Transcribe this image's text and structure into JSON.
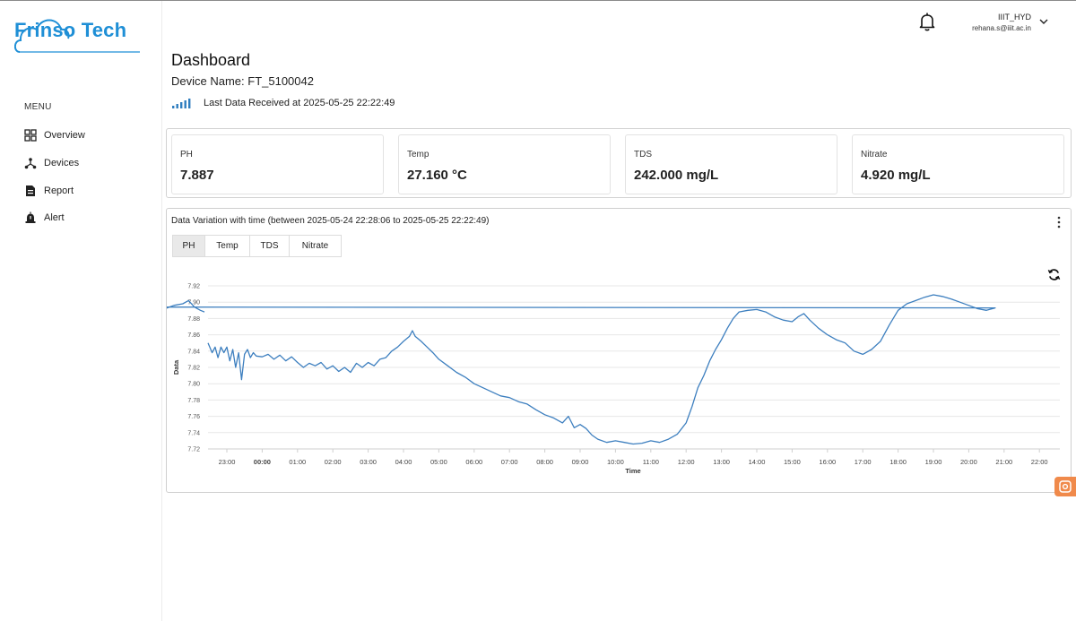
{
  "brand": {
    "name": "Frinso Tech",
    "color": "#1f8fd6"
  },
  "sidebar": {
    "menu_title": "MENU",
    "items": [
      {
        "label": "Overview",
        "icon": "grid-icon"
      },
      {
        "label": "Devices",
        "icon": "network-icon"
      },
      {
        "label": "Report",
        "icon": "document-icon"
      },
      {
        "label": "Alert",
        "icon": "alarm-icon"
      }
    ]
  },
  "topbar": {
    "user_name": "IIIT_HYD",
    "user_email": "rehana.s@iiit.ac.in",
    "icons": [
      "bell-icon",
      "chevron-down-icon"
    ]
  },
  "header": {
    "title": "Dashboard",
    "device_name": "Device Name: FT_5100042",
    "last_data": "Last Data Received at 2025-05-25 22:22:49"
  },
  "stats": [
    {
      "label": "PH",
      "value": "7.887"
    },
    {
      "label": "Temp",
      "value": "27.160 °C"
    },
    {
      "label": "TDS",
      "value": "242.000 mg/L"
    },
    {
      "label": "Nitrate",
      "value": "4.920 mg/L"
    }
  ],
  "chart_panel": {
    "title": "Data Variation with time (between 2025-05-24 22:28:06 to 2025-05-25 22:22:49)",
    "tabs": [
      "PH",
      "Temp",
      "TDS",
      "Nitrate"
    ],
    "active_tab": "PH"
  },
  "chart_data": {
    "type": "line",
    "xlabel": "Time",
    "ylabel": "Data",
    "ylim": [
      7.72,
      7.92
    ],
    "yticks": [
      "7.92",
      "7.90",
      "7.88",
      "7.86",
      "7.84",
      "7.82",
      "7.80",
      "7.78",
      "7.76",
      "7.74",
      "7.72"
    ],
    "xticks": [
      "23:00",
      "00:00",
      "01:00",
      "02:00",
      "03:00",
      "04:00",
      "05:00",
      "06:00",
      "07:00",
      "08:00",
      "09:00",
      "10:00",
      "11:00",
      "12:00",
      "13:00",
      "14:00",
      "15:00",
      "16:00",
      "17:00",
      "18:00",
      "19:00",
      "20:00",
      "21:00",
      "22:00"
    ],
    "bold_xtick": "00:00",
    "line_color": "#3d7fbf",
    "grid": true,
    "points": [
      [
        "22:28",
        7.85
      ],
      [
        "22:35",
        7.838
      ],
      [
        "22:40",
        7.845
      ],
      [
        "22:45",
        7.832
      ],
      [
        "22:50",
        7.845
      ],
      [
        "22:55",
        7.838
      ],
      [
        "23:00",
        7.845
      ],
      [
        "23:05",
        7.828
      ],
      [
        "23:10",
        7.842
      ],
      [
        "23:15",
        7.82
      ],
      [
        "23:20",
        7.838
      ],
      [
        "23:25",
        7.805
      ],
      [
        "23:30",
        7.836
      ],
      [
        "23:35",
        7.842
      ],
      [
        "23:40",
        7.832
      ],
      [
        "23:45",
        7.838
      ],
      [
        "23:50",
        7.834
      ],
      [
        "00:00",
        7.833
      ],
      [
        "00:10",
        7.836
      ],
      [
        "00:20",
        7.83
      ],
      [
        "00:30",
        7.835
      ],
      [
        "00:40",
        7.828
      ],
      [
        "00:50",
        7.833
      ],
      [
        "01:00",
        7.826
      ],
      [
        "01:10",
        7.82
      ],
      [
        "01:20",
        7.825
      ],
      [
        "01:30",
        7.822
      ],
      [
        "01:40",
        7.826
      ],
      [
        "01:50",
        7.818
      ],
      [
        "02:00",
        7.822
      ],
      [
        "02:10",
        7.815
      ],
      [
        "02:20",
        7.82
      ],
      [
        "02:30",
        7.814
      ],
      [
        "02:40",
        7.825
      ],
      [
        "02:50",
        7.82
      ],
      [
        "03:00",
        7.826
      ],
      [
        "03:10",
        7.822
      ],
      [
        "03:20",
        7.83
      ],
      [
        "03:30",
        7.832
      ],
      [
        "03:40",
        7.84
      ],
      [
        "03:50",
        7.845
      ],
      [
        "04:00",
        7.852
      ],
      [
        "04:10",
        7.858
      ],
      [
        "04:15",
        7.865
      ],
      [
        "04:20",
        7.858
      ],
      [
        "04:30",
        7.852
      ],
      [
        "04:40",
        7.845
      ],
      [
        "04:50",
        7.838
      ],
      [
        "05:00",
        7.83
      ],
      [
        "05:15",
        7.822
      ],
      [
        "05:30",
        7.814
      ],
      [
        "05:45",
        7.808
      ],
      [
        "06:00",
        7.8
      ],
      [
        "06:15",
        7.795
      ],
      [
        "06:30",
        7.79
      ],
      [
        "06:45",
        7.785
      ],
      [
        "07:00",
        7.783
      ],
      [
        "07:15",
        7.778
      ],
      [
        "07:30",
        7.775
      ],
      [
        "07:45",
        7.768
      ],
      [
        "08:00",
        7.762
      ],
      [
        "08:15",
        7.758
      ],
      [
        "08:30",
        7.752
      ],
      [
        "08:40",
        7.76
      ],
      [
        "08:50",
        7.746
      ],
      [
        "09:00",
        7.75
      ],
      [
        "09:10",
        7.745
      ],
      [
        "09:20",
        7.737
      ],
      [
        "09:30",
        7.732
      ],
      [
        "09:45",
        7.728
      ],
      [
        "10:00",
        7.73
      ],
      [
        "10:15",
        7.728
      ],
      [
        "10:30",
        7.726
      ],
      [
        "10:45",
        7.727
      ],
      [
        "11:00",
        7.73
      ],
      [
        "11:15",
        7.728
      ],
      [
        "11:30",
        7.732
      ],
      [
        "11:45",
        7.738
      ],
      [
        "12:00",
        7.752
      ],
      [
        "12:10",
        7.772
      ],
      [
        "12:20",
        7.795
      ],
      [
        "12:30",
        7.81
      ],
      [
        "12:40",
        7.828
      ],
      [
        "12:50",
        7.842
      ],
      [
        "13:00",
        7.854
      ],
      [
        "13:10",
        7.868
      ],
      [
        "13:20",
        7.88
      ],
      [
        "13:30",
        7.888
      ],
      [
        "13:45",
        7.89
      ],
      [
        "14:00",
        7.891
      ],
      [
        "14:15",
        7.888
      ],
      [
        "14:30",
        7.882
      ],
      [
        "14:45",
        7.878
      ],
      [
        "15:00",
        7.876
      ],
      [
        "15:10",
        7.882
      ],
      [
        "15:20",
        7.886
      ],
      [
        "15:30",
        7.878
      ],
      [
        "15:45",
        7.868
      ],
      [
        "16:00",
        7.86
      ],
      [
        "16:15",
        7.854
      ],
      [
        "16:30",
        7.85
      ],
      [
        "16:45",
        7.84
      ],
      [
        "17:00",
        7.836
      ],
      [
        "17:15",
        7.842
      ],
      [
        "17:30",
        7.852
      ],
      [
        "17:45",
        7.872
      ],
      [
        "18:00",
        7.89
      ],
      [
        "18:15",
        7.898
      ],
      [
        "18:30",
        7.902
      ],
      [
        "18:45",
        7.906
      ],
      [
        "19:00",
        7.909
      ],
      [
        "19:15",
        7.907
      ],
      [
        "19:30",
        7.904
      ],
      [
        "19:45",
        7.9
      ],
      [
        "20:00",
        7.896
      ],
      [
        "20:15",
        7.892
      ],
      [
        "20:30",
        7.89
      ],
      [
        "20:45",
        7.893
      ],
      [
        "21:00",
        7.894
      ],
      [
        "21:15",
        7.892
      ],
      [
        "21:30",
        7.896
      ],
      [
        "21:45",
        7.898
      ],
      [
        "21:55",
        7.902
      ],
      [
        "22:05",
        7.894
      ],
      [
        "22:15",
        7.89
      ],
      [
        "22:22",
        7.888
      ]
    ]
  }
}
